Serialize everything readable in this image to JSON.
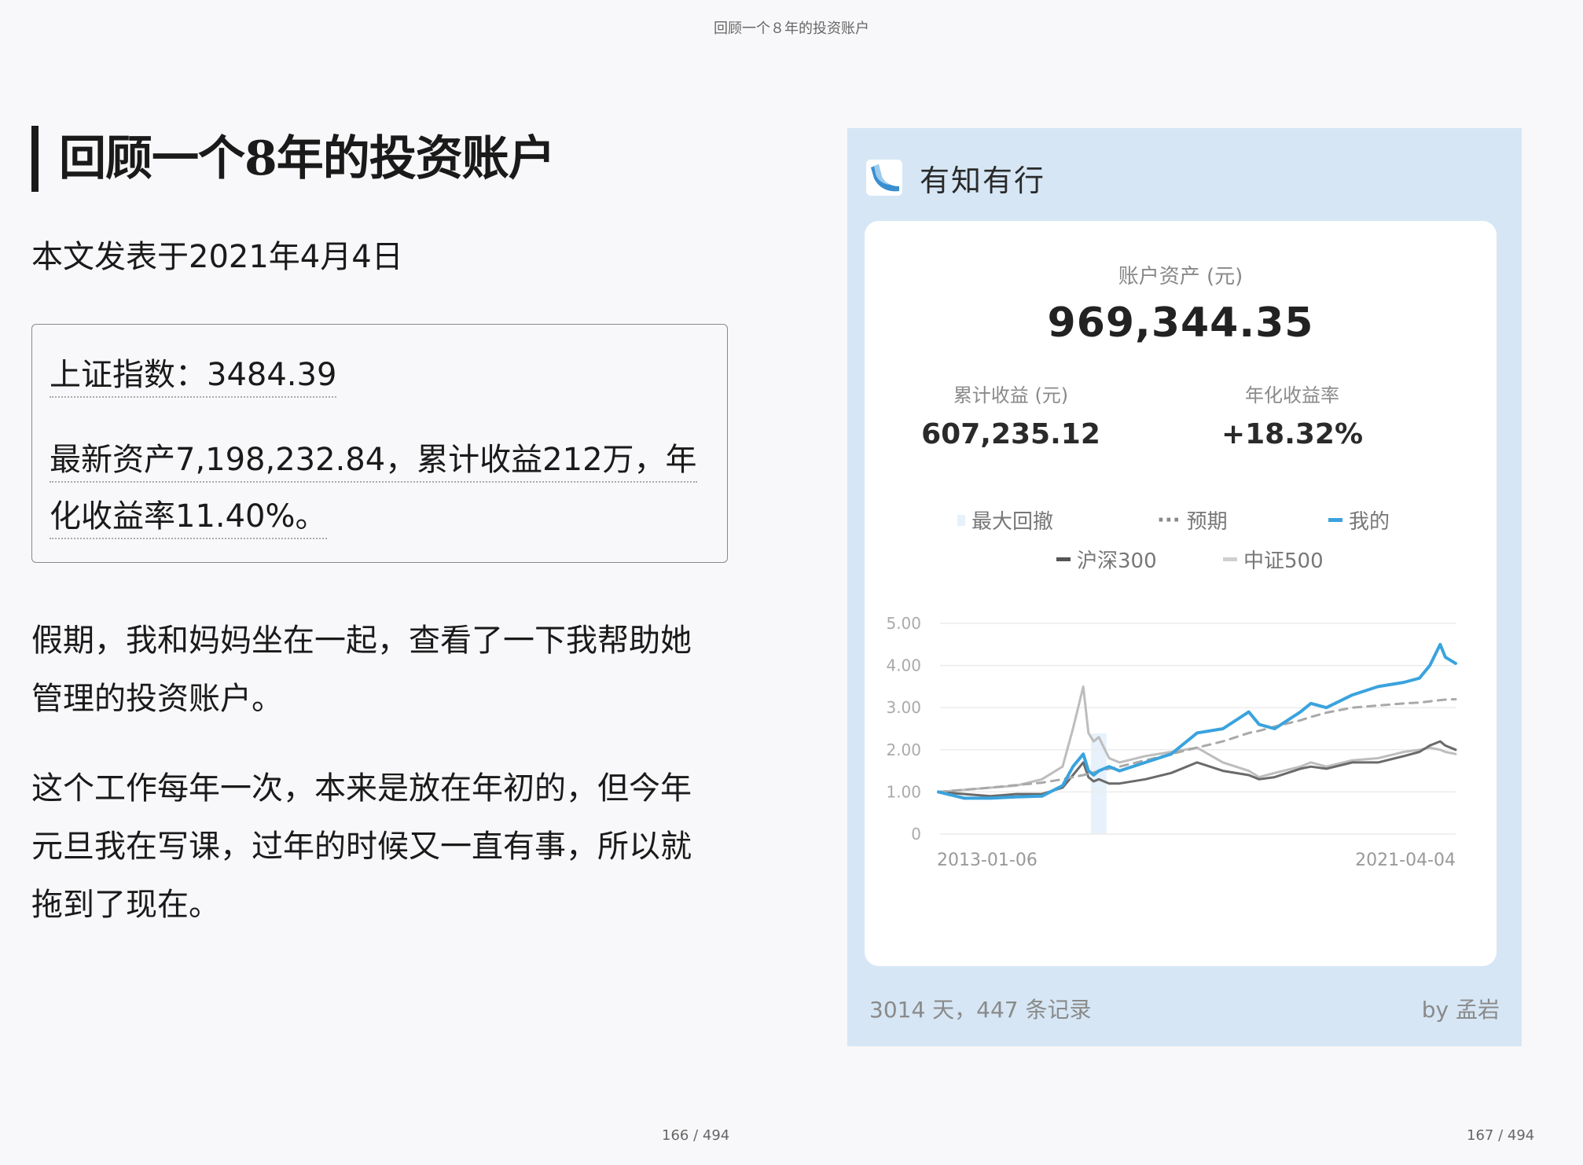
{
  "header": {
    "title": "回顾一个８年的投资账户"
  },
  "left_page": {
    "heading": "回顾一个8年的投资账户",
    "date": "本文发表于2021年4月4日",
    "quote": {
      "line1": "上证指数：3484.39",
      "line2a": "最新资产7,198,232.84，累计收益212万，年",
      "line2b": "化收益率11.40%。"
    },
    "para1a": "假期，我和妈妈坐在一起，查看了一下我帮助她",
    "para1b": "管理的投资账户。",
    "para2a": "这个工作每年一次，本来是放在年初的，但今年",
    "para2b": "元旦我在写课，过年的时候又一直有事，所以就",
    "para2c": "拖到了现在。",
    "page_number": "166 / 494"
  },
  "right_page": {
    "page_number": "167 / 494",
    "card": {
      "brand": "有知有行",
      "asset_label": "账户资产 (元)",
      "asset_value": "969,344.35",
      "cum_label": "累计收益 (元)",
      "cum_value": "607,235.12",
      "annual_label": "年化收益率",
      "annual_value": "+18.32%",
      "legend": {
        "drawdown": "最大回撤",
        "expected": "预期",
        "mine": "我的",
        "hs300": "沪深300",
        "zz500": "中证500"
      },
      "footer_left": "3014 天，447 条记录",
      "footer_right": "by 孟岩"
    },
    "colors": {
      "card_bg": "#d6e6f5",
      "mine": "#3aa3dd",
      "hs300": "#6a6a6a",
      "zz500": "#bdbdbd",
      "expected": "#a9a9a9",
      "drawdown": "#e6f1fb"
    }
  },
  "chart_data": {
    "type": "line",
    "x_start": "2013-01-06",
    "x_end": "2021-04-04",
    "yticks": [
      "5.00",
      "4.00",
      "3.00",
      "2.00",
      "1.00",
      "0"
    ],
    "ylim": [
      0,
      5
    ],
    "x_fraction": [
      0,
      0.05,
      0.1,
      0.15,
      0.2,
      0.24,
      0.26,
      0.28,
      0.29,
      0.3,
      0.31,
      0.33,
      0.35,
      0.4,
      0.45,
      0.5,
      0.55,
      0.6,
      0.62,
      0.65,
      0.7,
      0.72,
      0.75,
      0.8,
      0.85,
      0.9,
      0.93,
      0.95,
      0.97,
      0.98,
      1.0
    ],
    "series": [
      {
        "name": "我的",
        "values": [
          1.0,
          0.85,
          0.85,
          0.88,
          0.9,
          1.15,
          1.6,
          1.9,
          1.5,
          1.4,
          1.5,
          1.6,
          1.5,
          1.7,
          1.9,
          2.4,
          2.5,
          2.9,
          2.6,
          2.5,
          2.9,
          3.1,
          3.0,
          3.3,
          3.5,
          3.6,
          3.7,
          4.0,
          4.5,
          4.2,
          4.05
        ]
      },
      {
        "name": "沪深300",
        "values": [
          1.0,
          0.95,
          0.9,
          0.95,
          0.95,
          1.1,
          1.4,
          1.7,
          1.35,
          1.25,
          1.3,
          1.2,
          1.2,
          1.3,
          1.45,
          1.7,
          1.5,
          1.4,
          1.3,
          1.35,
          1.55,
          1.6,
          1.55,
          1.7,
          1.7,
          1.85,
          1.95,
          2.1,
          2.2,
          2.1,
          2.0
        ]
      },
      {
        "name": "中证500",
        "values": [
          1.0,
          1.05,
          1.1,
          1.15,
          1.3,
          1.6,
          2.5,
          3.5,
          2.4,
          2.2,
          2.3,
          1.8,
          1.7,
          1.85,
          1.95,
          2.05,
          1.7,
          1.5,
          1.35,
          1.45,
          1.6,
          1.7,
          1.6,
          1.75,
          1.8,
          1.95,
          2.0,
          2.05,
          2.0,
          1.95,
          1.9
        ]
      },
      {
        "name": "预期",
        "values": [
          1.0,
          1.05,
          1.1,
          1.16,
          1.22,
          1.3,
          1.35,
          1.4,
          1.43,
          1.46,
          1.5,
          1.55,
          1.6,
          1.75,
          1.9,
          2.05,
          2.2,
          2.4,
          2.45,
          2.55,
          2.7,
          2.78,
          2.88,
          3.0,
          3.05,
          3.1,
          3.12,
          3.15,
          3.18,
          3.19,
          3.2
        ]
      }
    ],
    "drawdown_fraction": [
      0.295,
      0.325
    ]
  }
}
